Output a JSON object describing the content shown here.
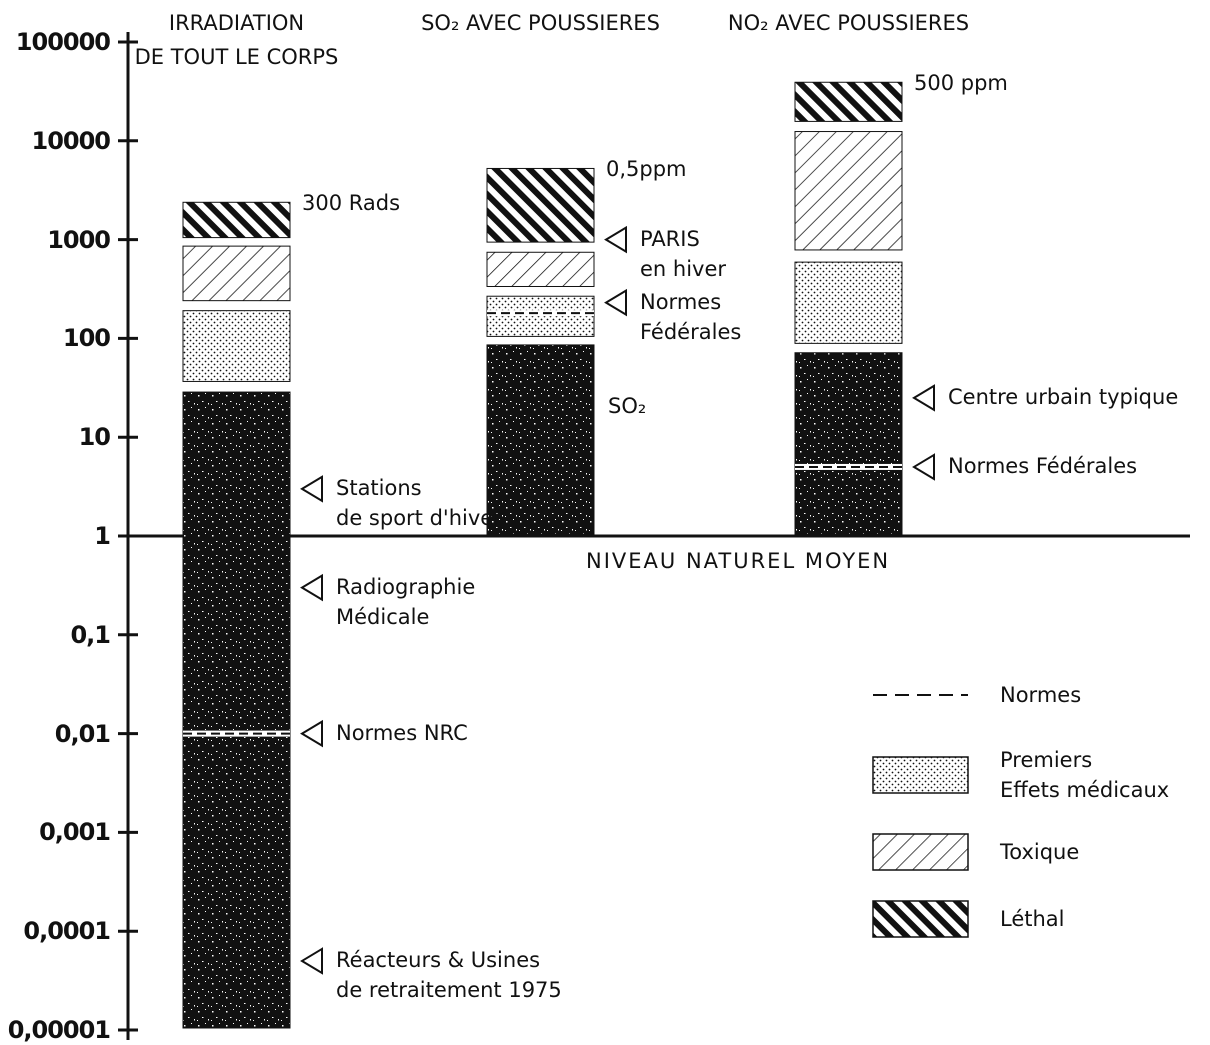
{
  "chart_data": {
    "type": "range",
    "log": true,
    "ylim": [
      1e-05,
      100000
    ],
    "yticks": [
      {
        "value": 1e-05,
        "label": "0,00001"
      },
      {
        "value": 0.0001,
        "label": "0,0001"
      },
      {
        "value": 0.001,
        "label": "0,001"
      },
      {
        "value": 0.01,
        "label": "0,01"
      },
      {
        "value": 0.1,
        "label": "0,1"
      },
      1,
      10,
      100,
      1000,
      10000,
      100000
    ],
    "categories": [
      "IRRADIATION\nDE TOUT LE CORPS",
      "SO₂ AVEC POUSSIERES",
      "NO₂ AVEC POUSSIERES"
    ],
    "baseline": {
      "value": 1,
      "label": "NIVEAU NATUREL MOYEN"
    },
    "top_labels": [
      "300 Rads",
      "0,5ppm",
      "500 ppm"
    ],
    "series": [
      {
        "pattern": "speckle",
        "values": [
          [
            1e-05,
            30
          ],
          [
            1,
            90
          ],
          [
            1,
            75
          ]
        ]
      },
      {
        "name": "Premiers\nEffets médicaux",
        "pattern": "dots",
        "values": [
          [
            35,
            200
          ],
          [
            100,
            280
          ],
          [
            85,
            620
          ]
        ]
      },
      {
        "name": "Toxique",
        "pattern": "hatch",
        "values": [
          [
            230,
            900
          ],
          [
            320,
            780
          ],
          [
            750,
            13000
          ]
        ]
      },
      {
        "name": "Léthal",
        "pattern": "heavy-hatch",
        "values": [
          [
            1000,
            2500
          ],
          [
            900,
            5500
          ],
          [
            15000,
            41000
          ]
        ]
      },
      {
        "name": "Normes",
        "pattern": "dash",
        "values": [
          0.01,
          180,
          5
        ]
      }
    ],
    "annotations": [
      [
        {
          "text": "Stations\nde sport d'hiver",
          "value": 3
        },
        {
          "text": "Radiographie\nMédicale",
          "value": 0.3
        },
        {
          "text": "Normes  NRC",
          "value": 0.01
        },
        {
          "text": "Réacteurs & Usines\nde  retraitement 1975",
          "value": 5e-05
        }
      ],
      [
        {
          "text": "PARIS\nen hiver",
          "value": 1000
        },
        {
          "text": "Normes\nFédérales",
          "value": 230
        },
        {
          "text": "SO₂",
          "value": 20,
          "arrow": false
        }
      ],
      [
        {
          "text": "Centre  urbain typique",
          "value": 25
        },
        {
          "text": "Normes  Fédérales",
          "value": 5
        }
      ]
    ]
  }
}
